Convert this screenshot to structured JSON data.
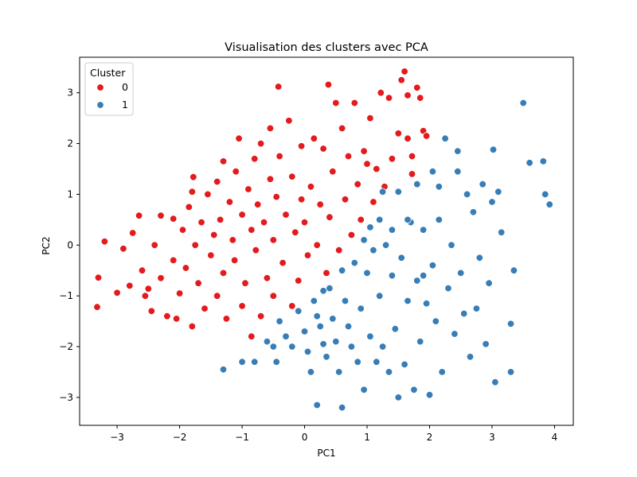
{
  "chart_data": {
    "type": "scatter",
    "title": "Visualisation des clusters avec PCA",
    "xlabel": "PC1",
    "ylabel": "PC2",
    "xlim": [
      -3.6,
      4.3
    ],
    "ylim": [
      -3.55,
      3.7
    ],
    "xticks": [
      -3,
      -2,
      -1,
      0,
      1,
      2,
      3,
      4
    ],
    "yticks": [
      -3,
      -2,
      -1,
      0,
      1,
      2,
      3
    ],
    "grid": false,
    "legend": {
      "title": "Cluster",
      "position": "top-left"
    },
    "series": [
      {
        "name": "0",
        "color": "#e41a1c",
        "points": [
          [
            -3.3,
            -0.64
          ],
          [
            -3.32,
            -1.22
          ],
          [
            -3.2,
            0.07
          ],
          [
            -3.0,
            -0.94
          ],
          [
            -2.9,
            -0.07
          ],
          [
            -2.8,
            -0.8
          ],
          [
            -2.75,
            0.24
          ],
          [
            -2.65,
            0.58
          ],
          [
            -2.6,
            -0.5
          ],
          [
            -2.55,
            -1.0
          ],
          [
            -2.5,
            -0.86
          ],
          [
            -2.45,
            -1.3
          ],
          [
            -2.4,
            0.0
          ],
          [
            -2.3,
            -0.65
          ],
          [
            -2.3,
            0.58
          ],
          [
            -2.2,
            -1.4
          ],
          [
            -2.1,
            -0.3
          ],
          [
            -2.1,
            0.52
          ],
          [
            -2.05,
            -1.45
          ],
          [
            -2.0,
            -0.95
          ],
          [
            -1.95,
            0.3
          ],
          [
            -1.9,
            -0.45
          ],
          [
            -1.85,
            0.75
          ],
          [
            -1.8,
            -1.6
          ],
          [
            -1.8,
            1.05
          ],
          [
            -1.78,
            1.34
          ],
          [
            -1.75,
            0.0
          ],
          [
            -1.7,
            -0.75
          ],
          [
            -1.65,
            0.45
          ],
          [
            -1.6,
            -1.25
          ],
          [
            -1.55,
            1.0
          ],
          [
            -1.5,
            -0.2
          ],
          [
            -1.45,
            0.2
          ],
          [
            -1.4,
            -1.0
          ],
          [
            -1.4,
            1.25
          ],
          [
            -1.35,
            0.5
          ],
          [
            -1.3,
            -0.55
          ],
          [
            -1.3,
            1.65
          ],
          [
            -1.25,
            -1.45
          ],
          [
            -1.2,
            0.85
          ],
          [
            -1.15,
            0.1
          ],
          [
            -1.12,
            -0.3
          ],
          [
            -1.1,
            1.45
          ],
          [
            -1.05,
            2.1
          ],
          [
            -1.0,
            -1.2
          ],
          [
            -1.0,
            0.6
          ],
          [
            -0.95,
            -0.75
          ],
          [
            -0.9,
            1.1
          ],
          [
            -0.85,
            0.3
          ],
          [
            -0.85,
            -1.8
          ],
          [
            -0.8,
            1.7
          ],
          [
            -0.78,
            -0.1
          ],
          [
            -0.75,
            0.8
          ],
          [
            -0.7,
            -1.4
          ],
          [
            -0.7,
            2.0
          ],
          [
            -0.65,
            0.45
          ],
          [
            -0.6,
            -0.65
          ],
          [
            -0.55,
            1.3
          ],
          [
            -0.55,
            2.3
          ],
          [
            -0.5,
            -1.0
          ],
          [
            -0.5,
            0.1
          ],
          [
            -0.45,
            0.95
          ],
          [
            -0.42,
            3.12
          ],
          [
            -0.4,
            1.75
          ],
          [
            -0.35,
            -0.35
          ],
          [
            -0.3,
            0.6
          ],
          [
            -0.25,
            2.45
          ],
          [
            -0.2,
            -1.2
          ],
          [
            -0.2,
            1.35
          ],
          [
            -0.15,
            0.25
          ],
          [
            -0.1,
            -0.7
          ],
          [
            -0.05,
            0.9
          ],
          [
            -0.05,
            1.95
          ],
          [
            0.0,
            0.45
          ],
          [
            0.05,
            -0.2
          ],
          [
            0.1,
            1.15
          ],
          [
            0.15,
            2.1
          ],
          [
            0.2,
            0.0
          ],
          [
            0.25,
            0.8
          ],
          [
            0.3,
            1.9
          ],
          [
            0.35,
            -0.55
          ],
          [
            0.38,
            3.16
          ],
          [
            0.4,
            0.55
          ],
          [
            0.45,
            1.45
          ],
          [
            0.5,
            2.8
          ],
          [
            0.55,
            -0.1
          ],
          [
            0.6,
            2.3
          ],
          [
            0.65,
            0.9
          ],
          [
            0.7,
            1.75
          ],
          [
            0.75,
            0.2
          ],
          [
            0.8,
            2.8
          ],
          [
            0.85,
            1.2
          ],
          [
            0.9,
            0.5
          ],
          [
            0.95,
            1.85
          ],
          [
            1.0,
            1.6
          ],
          [
            1.05,
            2.5
          ],
          [
            1.1,
            0.85
          ],
          [
            1.15,
            1.5
          ],
          [
            1.22,
            3.0
          ],
          [
            1.28,
            1.15
          ],
          [
            1.35,
            2.9
          ],
          [
            1.4,
            1.7
          ],
          [
            1.5,
            2.2
          ],
          [
            1.55,
            3.25
          ],
          [
            1.6,
            3.42
          ],
          [
            1.65,
            2.1
          ],
          [
            1.72,
            1.75
          ],
          [
            1.8,
            3.1
          ],
          [
            1.85,
            2.9
          ],
          [
            1.9,
            2.25
          ],
          [
            1.95,
            2.15
          ],
          [
            1.72,
            1.4
          ],
          [
            1.65,
            2.95
          ]
        ]
      },
      {
        "name": "1",
        "color": "#377eb8",
        "points": [
          [
            -1.3,
            -2.45
          ],
          [
            -1.0,
            -2.3
          ],
          [
            -0.8,
            -2.3
          ],
          [
            -0.6,
            -1.9
          ],
          [
            -0.5,
            -2.0
          ],
          [
            -0.45,
            -2.3
          ],
          [
            -0.4,
            -1.5
          ],
          [
            -0.3,
            -1.8
          ],
          [
            -0.2,
            -2.0
          ],
          [
            -0.1,
            -1.3
          ],
          [
            0.0,
            -1.7
          ],
          [
            0.05,
            -2.1
          ],
          [
            0.1,
            -2.5
          ],
          [
            0.15,
            -1.1
          ],
          [
            0.2,
            -3.15
          ],
          [
            0.25,
            -1.6
          ],
          [
            0.3,
            -1.95
          ],
          [
            0.35,
            -2.2
          ],
          [
            0.4,
            -0.85
          ],
          [
            0.45,
            -1.45
          ],
          [
            0.5,
            -1.9
          ],
          [
            0.55,
            -2.5
          ],
          [
            0.6,
            -3.2
          ],
          [
            0.65,
            -1.1
          ],
          [
            0.7,
            -1.6
          ],
          [
            0.75,
            -2.0
          ],
          [
            0.8,
            -0.35
          ],
          [
            0.85,
            -2.3
          ],
          [
            0.9,
            -1.25
          ],
          [
            0.95,
            -2.85
          ],
          [
            1.0,
            -0.55
          ],
          [
            1.05,
            -1.8
          ],
          [
            1.1,
            -0.1
          ],
          [
            1.15,
            -2.3
          ],
          [
            1.2,
            -1.0
          ],
          [
            1.25,
            -2.0
          ],
          [
            1.3,
            0.0
          ],
          [
            1.35,
            -2.5
          ],
          [
            1.4,
            -0.6
          ],
          [
            1.45,
            -1.65
          ],
          [
            1.5,
            -3.0
          ],
          [
            1.55,
            -0.25
          ],
          [
            1.6,
            -2.35
          ],
          [
            1.65,
            -1.1
          ],
          [
            1.7,
            0.45
          ],
          [
            1.75,
            -2.85
          ],
          [
            1.8,
            -0.7
          ],
          [
            1.85,
            -1.9
          ],
          [
            1.9,
            0.3
          ],
          [
            1.95,
            -1.15
          ],
          [
            2.0,
            -2.95
          ],
          [
            2.05,
            -0.4
          ],
          [
            2.1,
            -1.5
          ],
          [
            2.15,
            0.5
          ],
          [
            2.2,
            -2.5
          ],
          [
            2.25,
            2.1
          ],
          [
            2.3,
            -0.85
          ],
          [
            2.35,
            0.0
          ],
          [
            2.4,
            -1.75
          ],
          [
            2.45,
            1.45
          ],
          [
            2.5,
            -0.55
          ],
          [
            2.55,
            -1.35
          ],
          [
            2.6,
            1.0
          ],
          [
            2.65,
            -2.2
          ],
          [
            2.7,
            0.65
          ],
          [
            2.75,
            -1.25
          ],
          [
            2.8,
            -0.25
          ],
          [
            2.85,
            1.2
          ],
          [
            2.9,
            -1.95
          ],
          [
            2.95,
            -0.75
          ],
          [
            3.0,
            0.85
          ],
          [
            3.05,
            -2.7
          ],
          [
            3.1,
            1.05
          ],
          [
            3.15,
            0.25
          ],
          [
            3.3,
            -2.5
          ],
          [
            3.35,
            -0.5
          ],
          [
            3.3,
            -1.55
          ],
          [
            3.5,
            2.8
          ],
          [
            3.6,
            1.62
          ],
          [
            3.82,
            1.65
          ],
          [
            3.85,
            1.0
          ],
          [
            3.92,
            0.8
          ],
          [
            3.02,
            1.88
          ],
          [
            2.45,
            1.85
          ],
          [
            1.25,
            1.05
          ],
          [
            1.5,
            1.05
          ],
          [
            1.65,
            0.5
          ],
          [
            1.2,
            0.5
          ],
          [
            1.05,
            0.35
          ],
          [
            0.95,
            0.1
          ],
          [
            0.6,
            -0.5
          ],
          [
            0.3,
            -0.9
          ],
          [
            0.2,
            -1.4
          ],
          [
            1.8,
            1.2
          ],
          [
            2.05,
            1.45
          ],
          [
            2.15,
            1.15
          ],
          [
            1.4,
            0.3
          ],
          [
            1.9,
            -0.6
          ]
        ]
      }
    ]
  }
}
